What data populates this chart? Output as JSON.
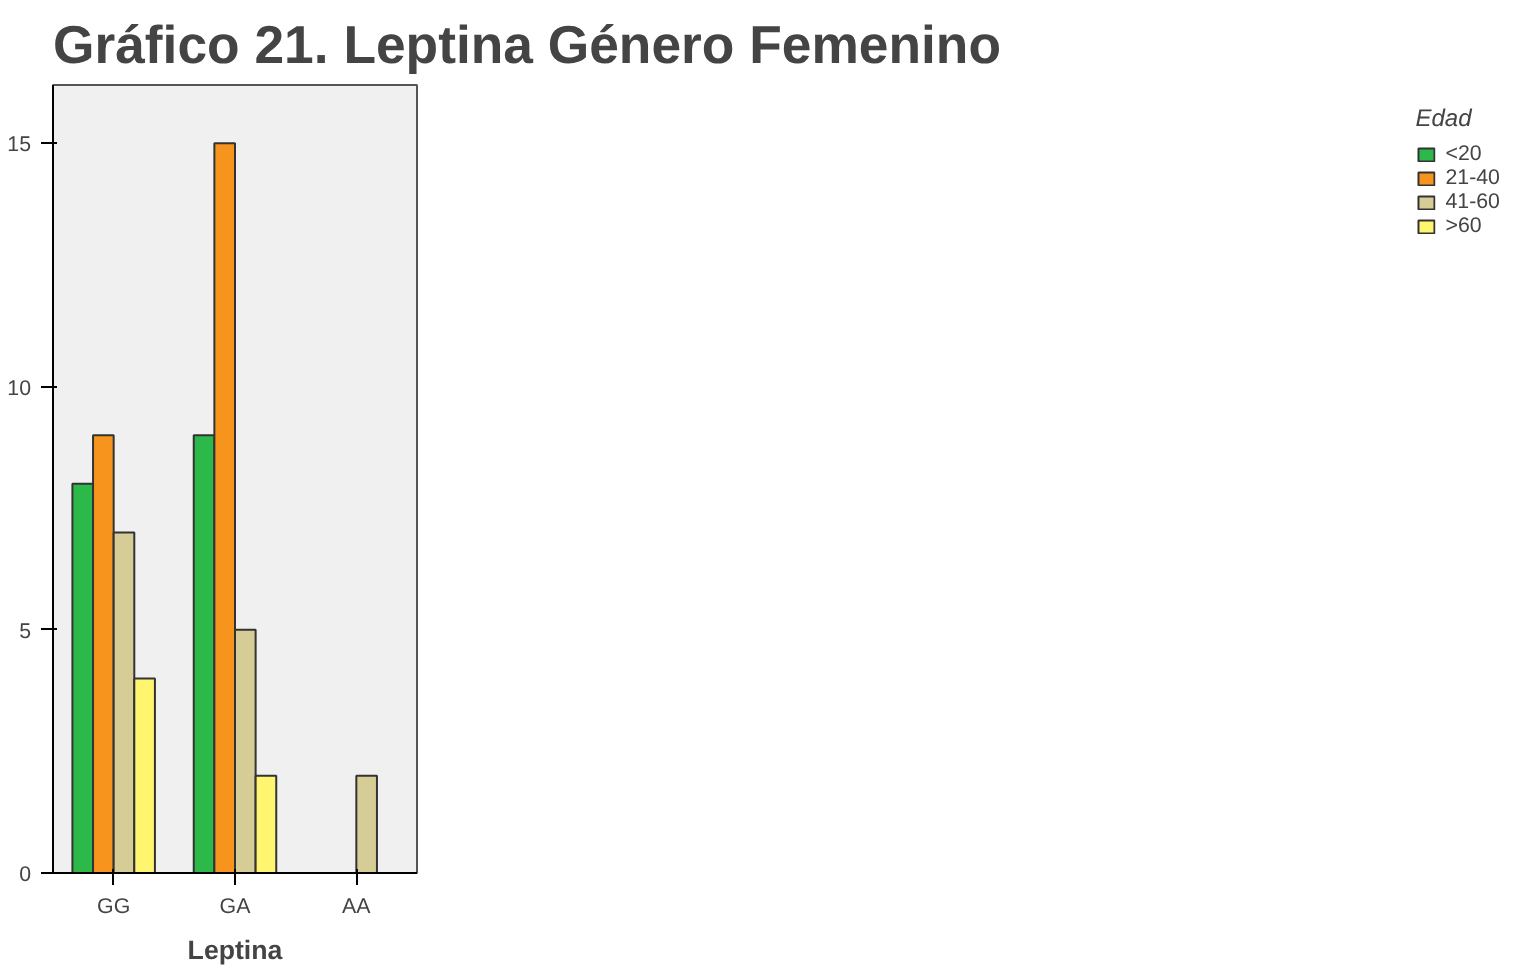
{
  "chart_data": {
    "type": "bar",
    "title": "Gráfico  21. Leptina Género Femenino",
    "xlabel": "Leptina",
    "legend_title": "Edad",
    "categories": [
      "GG",
      "GA",
      "AA"
    ],
    "series": [
      {
        "name": "<20",
        "color": "#2db84a",
        "values": [
          8,
          9,
          null
        ]
      },
      {
        "name": "21-40",
        "color": "#f7941d",
        "values": [
          9,
          15,
          null
        ]
      },
      {
        "name": "41-60",
        "color": "#d6cc96",
        "values": [
          7,
          5,
          2
        ]
      },
      {
        "name": ">60",
        "color": "#fff56e",
        "values": [
          4,
          2,
          null
        ]
      }
    ],
    "ylim": [
      0,
      16.2
    ],
    "yticks": [
      0,
      5,
      10,
      15
    ],
    "grid": false,
    "legend": "top right"
  }
}
